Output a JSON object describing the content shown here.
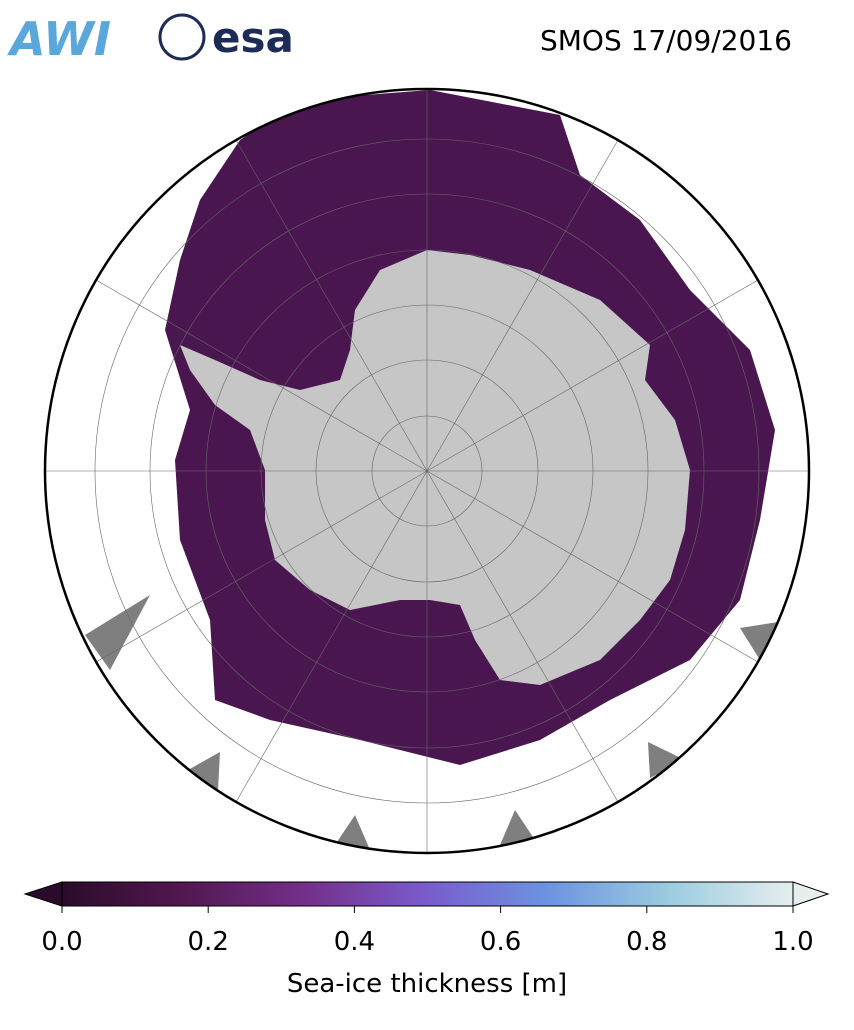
{
  "header": {
    "logos": [
      "AWI",
      "esa"
    ],
    "title": "SMOS 17/09/2016"
  },
  "colorbar": {
    "label": "Sea-ice thickness [m]",
    "lim": [
      0,
      1
    ],
    "ticks": [
      {
        "value": 0,
        "label": "0.0"
      },
      0.2,
      0.4,
      0.6,
      0.8,
      {
        "value": 1,
        "label": "1.0"
      }
    ],
    "colors": [
      "#2a0b2c",
      "#52184f",
      "#74308a",
      "#7a5ccc",
      "#6c94e0",
      "#9ccde0",
      "#e6eeee"
    ]
  }
}
